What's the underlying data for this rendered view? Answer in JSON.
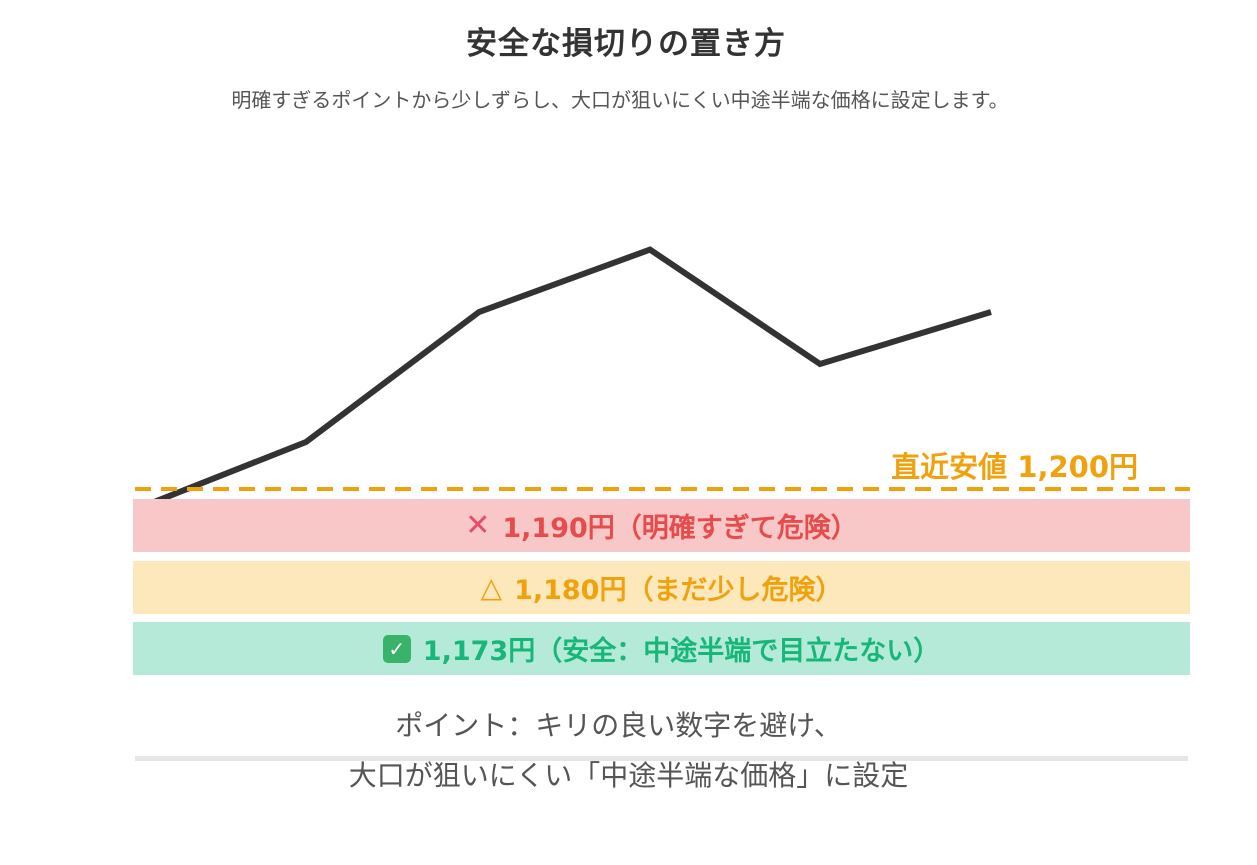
{
  "header": {
    "title": "安全な損切りの置き方",
    "subtitle": "明確すぎるポイントから少しずらし、大口が狙いにくい中途半端な価格に設定します。"
  },
  "colors": {
    "price_line": "#333333",
    "support_line": "#f0a20e",
    "danger_band": "#f8c7c7",
    "danger_text": "#e74c4c",
    "warn_band": "#fde8bb",
    "warn_text": "#f0a20e",
    "safe_band": "#b5ead8",
    "safe_text": "#17b679"
  },
  "chart": {
    "price_path": [
      0.98,
      0.85,
      0.6,
      0.48,
      0.7,
      0.6
    ],
    "support_label": "直近安値 1,200円"
  },
  "bands": [
    {
      "icon": "cross-mark-icon",
      "label": "1,190円（明確すぎて危険）"
    },
    {
      "icon": "triangle-warning-icon",
      "label": "1,180円（まだ少し危険）"
    },
    {
      "icon": "check-mark-icon",
      "label": "1,173円（安全：中途半端で目立たない）"
    }
  ],
  "note": {
    "line1": "ポイント：キリの良い数字を避け、",
    "line2": "大口が狙いにくい「中途半端な価格」に設定"
  }
}
